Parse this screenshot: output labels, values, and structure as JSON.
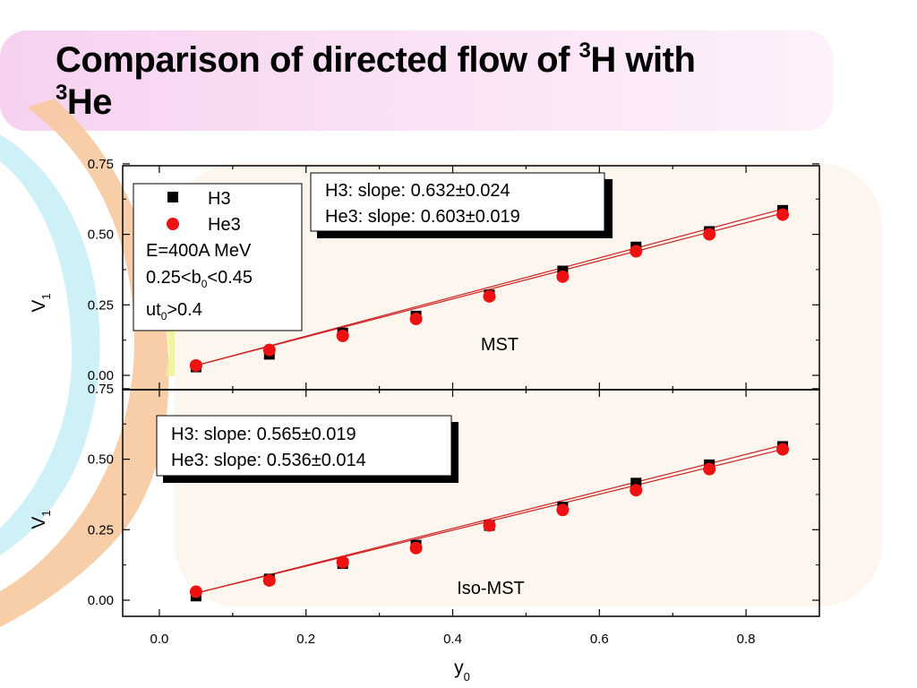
{
  "slide": {
    "title_part1": "Comparison of directed flow of ",
    "title_sup1": "3",
    "title_part2": "H with",
    "title_sup2": "3",
    "title_part3": "He"
  },
  "colors": {
    "h3": "#000000",
    "he3": "#ee1111",
    "fit_line": "#cc2222",
    "panel_bg": "#fdf6ee"
  },
  "chart_data": [
    {
      "type": "scatter",
      "panel": "top",
      "ylabel": "V",
      "ylabel_sub": "1",
      "ylim": [
        0,
        0.75
      ],
      "yticks": [
        "0.00",
        "0.25",
        "0.50",
        "0.75"
      ],
      "series": [
        {
          "name": "H3",
          "marker": "square",
          "x": [
            0.05,
            0.15,
            0.25,
            0.35,
            0.45,
            0.55,
            0.65,
            0.75,
            0.85
          ],
          "y": [
            0.03,
            0.075,
            0.15,
            0.21,
            0.285,
            0.37,
            0.455,
            0.51,
            0.585
          ]
        },
        {
          "name": "He3",
          "marker": "circle",
          "x": [
            0.05,
            0.15,
            0.25,
            0.35,
            0.45,
            0.55,
            0.65,
            0.75,
            0.85
          ],
          "y": [
            0.035,
            0.09,
            0.14,
            0.2,
            0.28,
            0.35,
            0.44,
            0.5,
            0.57
          ]
        }
      ],
      "fits": [
        {
          "series": "H3",
          "x0": 0.05,
          "y0": 0.035,
          "x1": 0.85,
          "y1": 0.59
        },
        {
          "series": "He3",
          "x0": 0.05,
          "y0": 0.035,
          "x1": 0.85,
          "y1": 0.575
        }
      ],
      "slope_box": {
        "line1": "H3: slope:  0.632±0.024",
        "line2": "He3: slope: 0.603±0.019"
      },
      "legend_box": {
        "placement": "top-left",
        "h3_label": "H3",
        "he3_label": "He3",
        "energy": "E=400A MeV",
        "b_pre": "0.25<b",
        "b_sub": "0",
        "b_post": "<0.45",
        "ut_pre": "ut",
        "ut_sub": "0",
        "ut_post": ">0.4"
      },
      "annotation": "MST"
    },
    {
      "type": "scatter",
      "panel": "bottom",
      "ylabel": "V",
      "ylabel_sub": "1",
      "xlabel": "y",
      "xlabel_sub": "0",
      "xlim": [
        -0.05,
        0.9
      ],
      "xticks": [
        "0.0",
        "0.2",
        "0.4",
        "0.6",
        "0.8"
      ],
      "ylim": [
        -0.05,
        0.75
      ],
      "yticks": [
        "0.00",
        "0.25",
        "0.50",
        "0.75"
      ],
      "series": [
        {
          "name": "H3",
          "marker": "square",
          "x": [
            0.05,
            0.15,
            0.25,
            0.35,
            0.45,
            0.55,
            0.65,
            0.75,
            0.85
          ],
          "y": [
            0.015,
            0.075,
            0.13,
            0.195,
            0.265,
            0.33,
            0.415,
            0.48,
            0.545
          ]
        },
        {
          "name": "He3",
          "marker": "circle",
          "x": [
            0.05,
            0.15,
            0.25,
            0.35,
            0.45,
            0.55,
            0.65,
            0.75,
            0.85
          ],
          "y": [
            0.03,
            0.07,
            0.135,
            0.185,
            0.265,
            0.32,
            0.39,
            0.465,
            0.535
          ]
        }
      ],
      "fits": [
        {
          "series": "H3",
          "x0": 0.05,
          "y0": 0.025,
          "x1": 0.85,
          "y1": 0.55
        },
        {
          "series": "He3",
          "x0": 0.05,
          "y0": 0.025,
          "x1": 0.85,
          "y1": 0.535
        }
      ],
      "slope_box": {
        "line1": "H3: slope:  0.565±0.019",
        "line2": "He3: slope: 0.536±0.014"
      },
      "annotation": "Iso-MST"
    }
  ]
}
